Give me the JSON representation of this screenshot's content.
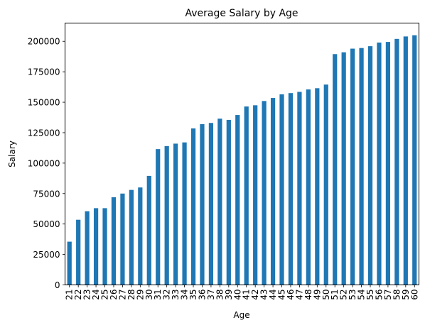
{
  "chart_data": {
    "type": "bar",
    "title": "Average Salary by Age",
    "xlabel": "Age",
    "ylabel": "Salary",
    "categories": [
      "21",
      "22",
      "23",
      "24",
      "25",
      "26",
      "27",
      "28",
      "29",
      "30",
      "31",
      "32",
      "33",
      "34",
      "35",
      "36",
      "37",
      "38",
      "39",
      "40",
      "41",
      "42",
      "43",
      "44",
      "45",
      "46",
      "47",
      "48",
      "49",
      "50",
      "51",
      "52",
      "53",
      "54",
      "55",
      "56",
      "57",
      "58",
      "59",
      "60"
    ],
    "values": [
      35500,
      53500,
      60500,
      63000,
      63000,
      72000,
      75000,
      78000,
      80000,
      89500,
      111500,
      114000,
      116000,
      117000,
      128500,
      132000,
      133000,
      136500,
      135500,
      139500,
      146500,
      147500,
      151000,
      153500,
      156500,
      157500,
      158500,
      160500,
      161500,
      164500,
      189500,
      191000,
      194000,
      194500,
      196000,
      199000,
      199500,
      202000,
      204000,
      205000
    ],
    "ylim": [
      0,
      215000
    ],
    "yticks": [
      0,
      25000,
      50000,
      75000,
      100000,
      125000,
      150000,
      175000,
      200000
    ],
    "ytick_labels": [
      "0",
      "25000",
      "50000",
      "75000",
      "100000",
      "125000",
      "150000",
      "175000",
      "200000"
    ],
    "bar_color": "#1f77b4",
    "grid": false,
    "legend": false
  }
}
